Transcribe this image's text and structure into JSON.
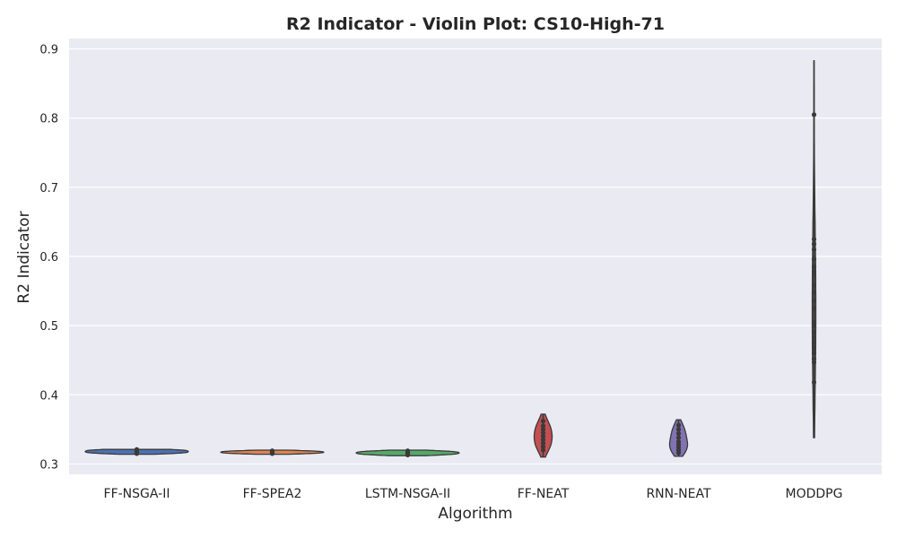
{
  "chart_data": {
    "type": "violin",
    "title": "R2 Indicator - Violin Plot: CS10-High-71",
    "xlabel": "Algorithm",
    "ylabel": "R2 Indicator",
    "ylim": [
      0.285,
      0.915
    ],
    "yticks": [
      0.3,
      0.4,
      0.5,
      0.6,
      0.7,
      0.8,
      0.9
    ],
    "ytick_labels": [
      "0.3",
      "0.4",
      "0.5",
      "0.6",
      "0.7",
      "0.8",
      "0.9"
    ],
    "grid": true,
    "background": "#eaeaf2",
    "categories": [
      "FF-NSGA-II",
      "FF-SPEA2",
      "LSTM-NSGA-II",
      "FF-NEAT",
      "RNN-NEAT",
      "MODDPG"
    ],
    "series": [
      {
        "category": "FF-NSGA-II",
        "color": "#4c72b0",
        "min": 0.314,
        "max": 0.321,
        "q1": 0.316,
        "median": 0.317,
        "q3": 0.319,
        "points": [
          0.315,
          0.316,
          0.317,
          0.318,
          0.319,
          0.32,
          0.321
        ]
      },
      {
        "category": "FF-SPEA2",
        "color": "#dd8452",
        "min": 0.314,
        "max": 0.32,
        "q1": 0.3155,
        "median": 0.3165,
        "q3": 0.318,
        "points": [
          0.315,
          0.316,
          0.317,
          0.318,
          0.319
        ]
      },
      {
        "category": "LSTM-NSGA-II",
        "color": "#55a868",
        "min": 0.312,
        "max": 0.32,
        "q1": 0.314,
        "median": 0.315,
        "q3": 0.317,
        "points": [
          0.313,
          0.314,
          0.315,
          0.316,
          0.317,
          0.318,
          0.319
        ]
      },
      {
        "category": "FF-NEAT",
        "color": "#c44e52",
        "min": 0.31,
        "max": 0.372,
        "q1": 0.325,
        "median": 0.333,
        "q3": 0.345,
        "points": [
          0.32,
          0.325,
          0.33,
          0.335,
          0.34,
          0.345,
          0.35,
          0.355,
          0.362
        ]
      },
      {
        "category": "RNN-NEAT",
        "color": "#8172b3",
        "min": 0.311,
        "max": 0.364,
        "q1": 0.318,
        "median": 0.324,
        "q3": 0.332,
        "points": [
          0.316,
          0.32,
          0.324,
          0.328,
          0.332,
          0.338,
          0.344,
          0.35,
          0.356
        ]
      },
      {
        "category": "MODDPG",
        "color": "#937860",
        "min": 0.338,
        "max": 0.883,
        "q1": 0.46,
        "median": 0.5,
        "q3": 0.59,
        "points": [
          0.418,
          0.447,
          0.452,
          0.46,
          0.468,
          0.475,
          0.482,
          0.49,
          0.5,
          0.505,
          0.525,
          0.536,
          0.548,
          0.558,
          0.578,
          0.585,
          0.596,
          0.61,
          0.618,
          0.625,
          0.805
        ]
      }
    ]
  }
}
